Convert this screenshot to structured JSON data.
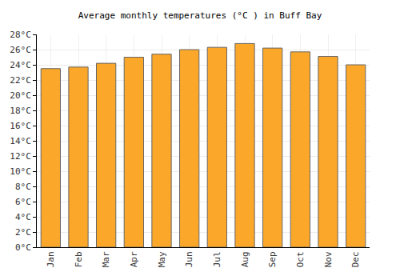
{
  "chart_data": {
    "type": "bar",
    "title": "Average monthly temperatures (°C ) in Buff Bay",
    "categories": [
      "Jan",
      "Feb",
      "Mar",
      "Apr",
      "May",
      "Jun",
      "Jul",
      "Aug",
      "Sep",
      "Oct",
      "Nov",
      "Dec"
    ],
    "values": [
      23.5,
      23.7,
      24.2,
      25.0,
      25.4,
      26.0,
      26.3,
      26.8,
      26.2,
      25.7,
      25.1,
      24.0
    ],
    "color": "#fba729",
    "ylim": [
      0,
      28
    ],
    "yticks": [
      {
        "value": 0,
        "label": "0°C"
      },
      {
        "value": 2,
        "label": "2°C"
      },
      {
        "value": 4,
        "label": "4°C"
      },
      {
        "value": 6,
        "label": "6°C"
      },
      {
        "value": 8,
        "label": "8°C"
      },
      {
        "value": 10,
        "label": "10°C"
      },
      {
        "value": 12,
        "label": "12°C"
      },
      {
        "value": 14,
        "label": "14°C"
      },
      {
        "value": 16,
        "label": "16°C"
      },
      {
        "value": 18,
        "label": "18°C"
      },
      {
        "value": 20,
        "label": "20°C"
      },
      {
        "value": 22,
        "label": "22°C"
      },
      {
        "value": 24,
        "label": "24°C"
      },
      {
        "value": 26,
        "label": "26°C"
      },
      {
        "value": 28,
        "label": "28°C"
      }
    ],
    "grid": true
  }
}
